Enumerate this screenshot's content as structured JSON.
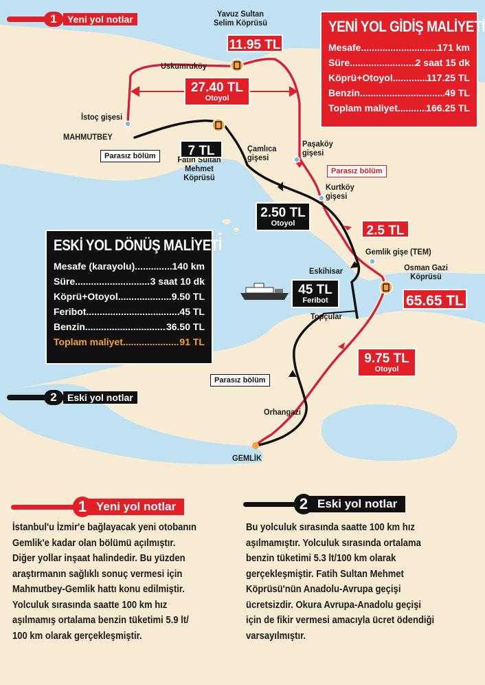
{
  "map_labels": {
    "yavuz_bridge": [
      "Yavuz Sultan",
      "Selim Köprüsü"
    ],
    "uskumrukoy": "Uskumruköy",
    "istoc": "İstoç gişesi",
    "mahmutbey": "MAHMUTBEY",
    "fatih_bridge": [
      "Fatih Sultan",
      "Mehmet",
      "Köprüsü"
    ],
    "camlica": [
      "Çamlıca",
      "gişesi"
    ],
    "pasakoy": [
      "Paşaköy",
      "gişesi"
    ],
    "kurtkoy": [
      "Kurtköy",
      "gişesi"
    ],
    "gemlik_gise": "Gemlik gişe (TEM)",
    "osman_bridge": [
      "Osman Gazi",
      "Köprüsü"
    ],
    "eskihisar": "Eskihisar",
    "topcular": "Topçular",
    "orhangazi": "Orhangazi",
    "gemlik": "GEMLİK"
  },
  "toll_tags": {
    "yavuz": {
      "value": "11.95 TL"
    },
    "otoyol_top": {
      "value": "27.40 TL",
      "sub": "Otoyol"
    },
    "fatih": {
      "value": "7 TL"
    },
    "camlica_otoyol": {
      "value": "2.50 TL",
      "sub": "Otoyol"
    },
    "kurtkoy": {
      "value": "2.5 TL"
    },
    "feribot": {
      "value": "45 TL",
      "sub": "Feribot"
    },
    "osman": {
      "value": "65.65 TL"
    },
    "otoyol_south": {
      "value": "9.75 TL",
      "sub": "Otoyol"
    }
  },
  "free_sections": {
    "left": "Parasız bölüm",
    "right": "Parasız bölüm",
    "south": "Parasız bölüm"
  },
  "new_cost": {
    "title": "YENİ YOL GİDİŞ MALİYETİ",
    "rows": [
      {
        "k": "Mesafe",
        "v": "171 km"
      },
      {
        "k": "Süre",
        "v": "2 saat 15 dk"
      },
      {
        "k": "Köprü+Otoyol",
        "v": "117.25 TL"
      },
      {
        "k": "Benzin",
        "v": "49 TL"
      },
      {
        "k": "Toplam maliyet",
        "v": "166.25 TL"
      }
    ]
  },
  "old_cost": {
    "title": "ESKİ YOL DÖNÜŞ MALİYETİ",
    "rows": [
      {
        "k": "Mesafe (karayolu)",
        "v": "140 km"
      },
      {
        "k": "Süre",
        "v": "3 saat 10 dk"
      },
      {
        "k": "Köprü+Otoyol",
        "v": "9.50 TL"
      },
      {
        "k": "Feribot",
        "v": "45 TL"
      },
      {
        "k": "Benzin",
        "v": "36.50 TL"
      },
      {
        "k": "Toplam maliyet",
        "v": "91 TL"
      }
    ]
  },
  "legend": {
    "new": {
      "num": "1",
      "label": "Yeni yol notlar"
    },
    "old": {
      "num": "2",
      "label": "Eski yol notlar"
    }
  },
  "notes": {
    "new": {
      "num": "1",
      "title": "Yeni yol notlar",
      "lines": [
        "İstanbul'u İzmir'e bağlayacak yeni otobanın",
        "Gemlik'e kadar olan bölümü açılmıştır.",
        "Diğer yollar inşaat halindedir. Bu yüzden",
        "araştırmanın sağlıklı sonuç vermesi için",
        "Mahmutbey-Gemlik hattı konu edilmiştir.",
        "Yolculuk sırasında saatte 100 km hız",
        "aşılmamış ortalama benzin tüketimi 5.9 lt/",
        "100 km olarak gerçekleşmiştir."
      ]
    },
    "old": {
      "num": "2",
      "title": "Eski yol notlar",
      "lines": [
        "Bu yolculuk sırasında saatte 100 km hız",
        "aşılmamıştır. Yolculuk sırasında ortalama",
        "benzin tüketimi 5.3 lt/100 km olarak",
        "gerçekleşmiştir. Fatih Sultan Mehmet",
        "Köprüsü'nün Anadolu-Avrupa geçişi",
        "ücretsizdir. Okura Avrupa-Anadolu geçişi",
        "için de fikir vermesi amacıyla ücret ödendiği",
        "varsayılmıştır."
      ]
    }
  },
  "colors": {
    "land": "#f7ecd3",
    "sea": "#bfe1f1",
    "new_route": "#e21e26",
    "old_route": "#111111",
    "accent_orange": "#f2a33a"
  }
}
